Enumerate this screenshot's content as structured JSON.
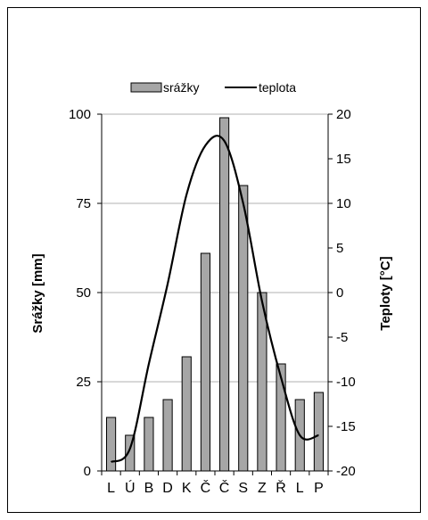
{
  "chart_data": {
    "type": "bar+line",
    "categories": [
      "L",
      "Ú",
      "B",
      "D",
      "K",
      "Č",
      "Č",
      "S",
      "Z",
      "Ř",
      "L",
      "P"
    ],
    "series": [
      {
        "name": "srážky",
        "type": "bar",
        "axis": "left",
        "values": [
          15,
          10,
          15,
          20,
          32,
          61,
          99,
          80,
          50,
          30,
          20,
          22
        ]
      },
      {
        "name": "teplota",
        "type": "line",
        "axis": "right",
        "values": [
          -19,
          -17.5,
          -8,
          1,
          11,
          16.5,
          17,
          10,
          -1,
          -9.5,
          -16,
          -16
        ]
      }
    ],
    "ylabel": "Srážky [mm]",
    "y2label": "Teploty [°C]",
    "ylim": [
      0,
      100
    ],
    "yticks": [
      0,
      25,
      50,
      75,
      100
    ],
    "y2lim": [
      -20,
      20
    ],
    "y2ticks": [
      -20,
      -15,
      -10,
      -5,
      0,
      5,
      10,
      15,
      20
    ],
    "grid": true,
    "legend_position": "top"
  },
  "colors": {
    "bar_fill": "#a6a6a6",
    "line": "#000000",
    "grid": "#b0b0b0"
  }
}
